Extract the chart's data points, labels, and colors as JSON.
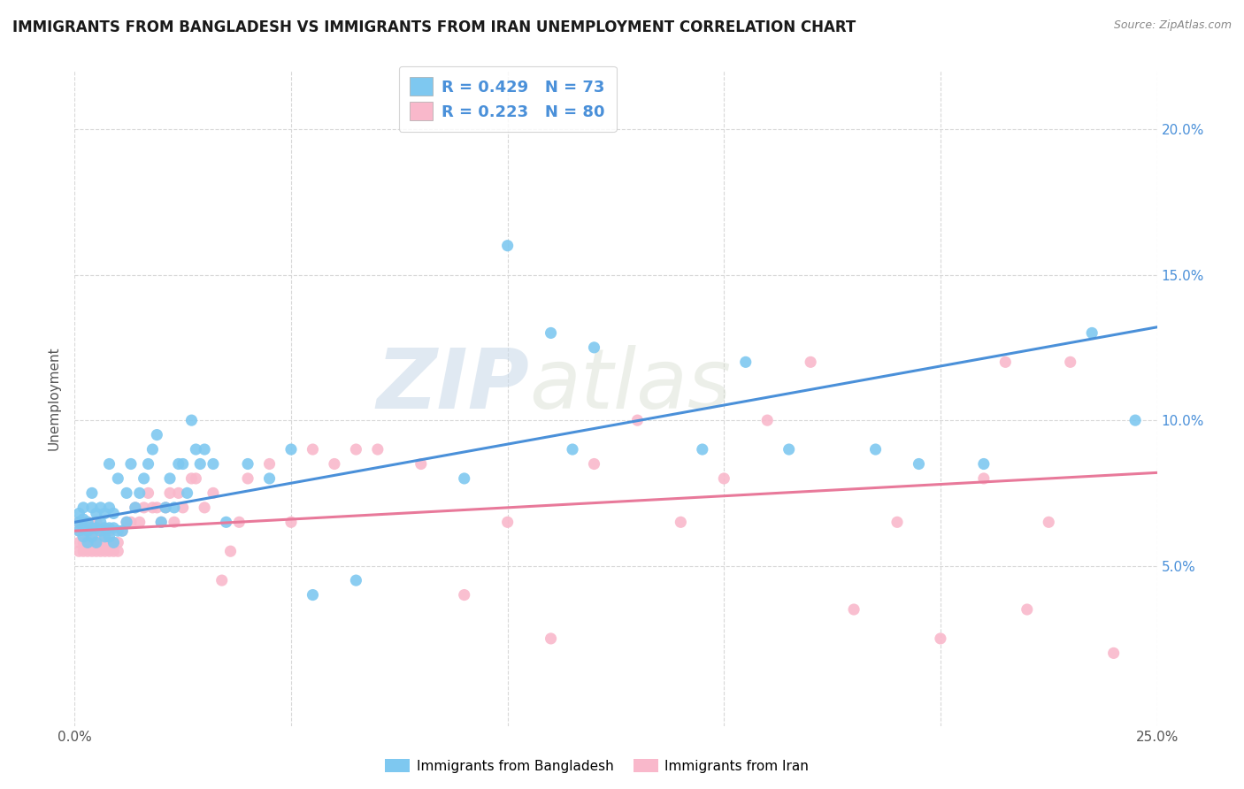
{
  "title": "IMMIGRANTS FROM BANGLADESH VS IMMIGRANTS FROM IRAN UNEMPLOYMENT CORRELATION CHART",
  "source": "Source: ZipAtlas.com",
  "ylabel": "Unemployment",
  "xlim": [
    0.0,
    0.25
  ],
  "ylim": [
    -0.005,
    0.22
  ],
  "x_ticks": [
    0.0,
    0.05,
    0.1,
    0.15,
    0.2,
    0.25
  ],
  "x_tick_labels": [
    "0.0%",
    "",
    "",
    "",
    "",
    "25.0%"
  ],
  "y_ticks": [
    0.05,
    0.1,
    0.15,
    0.2
  ],
  "y_tick_labels_right": [
    "5.0%",
    "10.0%",
    "15.0%",
    "20.0%"
  ],
  "bangladesh_color": "#7ec8f0",
  "iran_color": "#f9b8cb",
  "trendline_bangladesh_color": "#4a90d9",
  "trendline_iran_color": "#e8799a",
  "R_bangladesh": 0.429,
  "N_bangladesh": 73,
  "R_iran": 0.223,
  "N_iran": 80,
  "background_color": "#ffffff",
  "grid_color": "#d8d8d8",
  "watermark_zip": "ZIP",
  "watermark_atlas": "atlas",
  "legend_label_bangladesh": "Immigrants from Bangladesh",
  "legend_label_iran": "Immigrants from Iran",
  "bd_x": [
    0.001,
    0.001,
    0.001,
    0.002,
    0.002,
    0.002,
    0.002,
    0.003,
    0.003,
    0.003,
    0.004,
    0.004,
    0.004,
    0.004,
    0.005,
    0.005,
    0.005,
    0.006,
    0.006,
    0.006,
    0.007,
    0.007,
    0.007,
    0.008,
    0.008,
    0.008,
    0.008,
    0.009,
    0.009,
    0.009,
    0.01,
    0.01,
    0.011,
    0.012,
    0.012,
    0.013,
    0.014,
    0.015,
    0.016,
    0.017,
    0.018,
    0.019,
    0.02,
    0.021,
    0.022,
    0.023,
    0.024,
    0.025,
    0.026,
    0.027,
    0.028,
    0.029,
    0.03,
    0.032,
    0.035,
    0.04,
    0.045,
    0.05,
    0.055,
    0.065,
    0.09,
    0.1,
    0.11,
    0.115,
    0.12,
    0.145,
    0.155,
    0.165,
    0.185,
    0.195,
    0.21,
    0.235,
    0.245
  ],
  "bd_y": [
    0.062,
    0.065,
    0.068,
    0.06,
    0.063,
    0.066,
    0.07,
    0.058,
    0.062,
    0.065,
    0.06,
    0.063,
    0.07,
    0.075,
    0.058,
    0.063,
    0.068,
    0.062,
    0.065,
    0.07,
    0.06,
    0.063,
    0.068,
    0.06,
    0.063,
    0.07,
    0.085,
    0.058,
    0.063,
    0.068,
    0.062,
    0.08,
    0.062,
    0.065,
    0.075,
    0.085,
    0.07,
    0.075,
    0.08,
    0.085,
    0.09,
    0.095,
    0.065,
    0.07,
    0.08,
    0.07,
    0.085,
    0.085,
    0.075,
    0.1,
    0.09,
    0.085,
    0.09,
    0.085,
    0.065,
    0.085,
    0.08,
    0.09,
    0.04,
    0.045,
    0.08,
    0.16,
    0.13,
    0.09,
    0.125,
    0.09,
    0.12,
    0.09,
    0.09,
    0.085,
    0.085,
    0.13,
    0.1
  ],
  "ir_x": [
    0.001,
    0.001,
    0.001,
    0.001,
    0.002,
    0.002,
    0.002,
    0.002,
    0.003,
    0.003,
    0.003,
    0.003,
    0.004,
    0.004,
    0.004,
    0.005,
    0.005,
    0.005,
    0.005,
    0.006,
    0.006,
    0.006,
    0.007,
    0.007,
    0.007,
    0.008,
    0.008,
    0.008,
    0.009,
    0.009,
    0.01,
    0.01,
    0.011,
    0.012,
    0.013,
    0.014,
    0.015,
    0.016,
    0.017,
    0.018,
    0.019,
    0.02,
    0.021,
    0.022,
    0.023,
    0.024,
    0.025,
    0.027,
    0.028,
    0.03,
    0.032,
    0.034,
    0.036,
    0.038,
    0.04,
    0.045,
    0.05,
    0.055,
    0.06,
    0.065,
    0.07,
    0.08,
    0.09,
    0.1,
    0.11,
    0.12,
    0.13,
    0.14,
    0.15,
    0.16,
    0.17,
    0.18,
    0.19,
    0.2,
    0.21,
    0.215,
    0.22,
    0.225,
    0.23,
    0.24
  ],
  "ir_y": [
    0.055,
    0.058,
    0.062,
    0.065,
    0.055,
    0.058,
    0.062,
    0.065,
    0.055,
    0.058,
    0.06,
    0.065,
    0.055,
    0.058,
    0.062,
    0.055,
    0.058,
    0.06,
    0.065,
    0.055,
    0.058,
    0.06,
    0.055,
    0.058,
    0.062,
    0.055,
    0.058,
    0.062,
    0.055,
    0.058,
    0.055,
    0.058,
    0.062,
    0.065,
    0.065,
    0.07,
    0.065,
    0.07,
    0.075,
    0.07,
    0.07,
    0.065,
    0.07,
    0.075,
    0.065,
    0.075,
    0.07,
    0.08,
    0.08,
    0.07,
    0.075,
    0.045,
    0.055,
    0.065,
    0.08,
    0.085,
    0.065,
    0.09,
    0.085,
    0.09,
    0.09,
    0.085,
    0.04,
    0.065,
    0.025,
    0.085,
    0.1,
    0.065,
    0.08,
    0.1,
    0.12,
    0.035,
    0.065,
    0.025,
    0.08,
    0.12,
    0.035,
    0.065,
    0.12,
    0.02
  ],
  "trendline_bd_x0": 0.0,
  "trendline_bd_y0": 0.065,
  "trendline_bd_x1": 0.25,
  "trendline_bd_y1": 0.132,
  "trendline_ir_x0": 0.0,
  "trendline_ir_y0": 0.062,
  "trendline_ir_x1": 0.25,
  "trendline_ir_y1": 0.082
}
